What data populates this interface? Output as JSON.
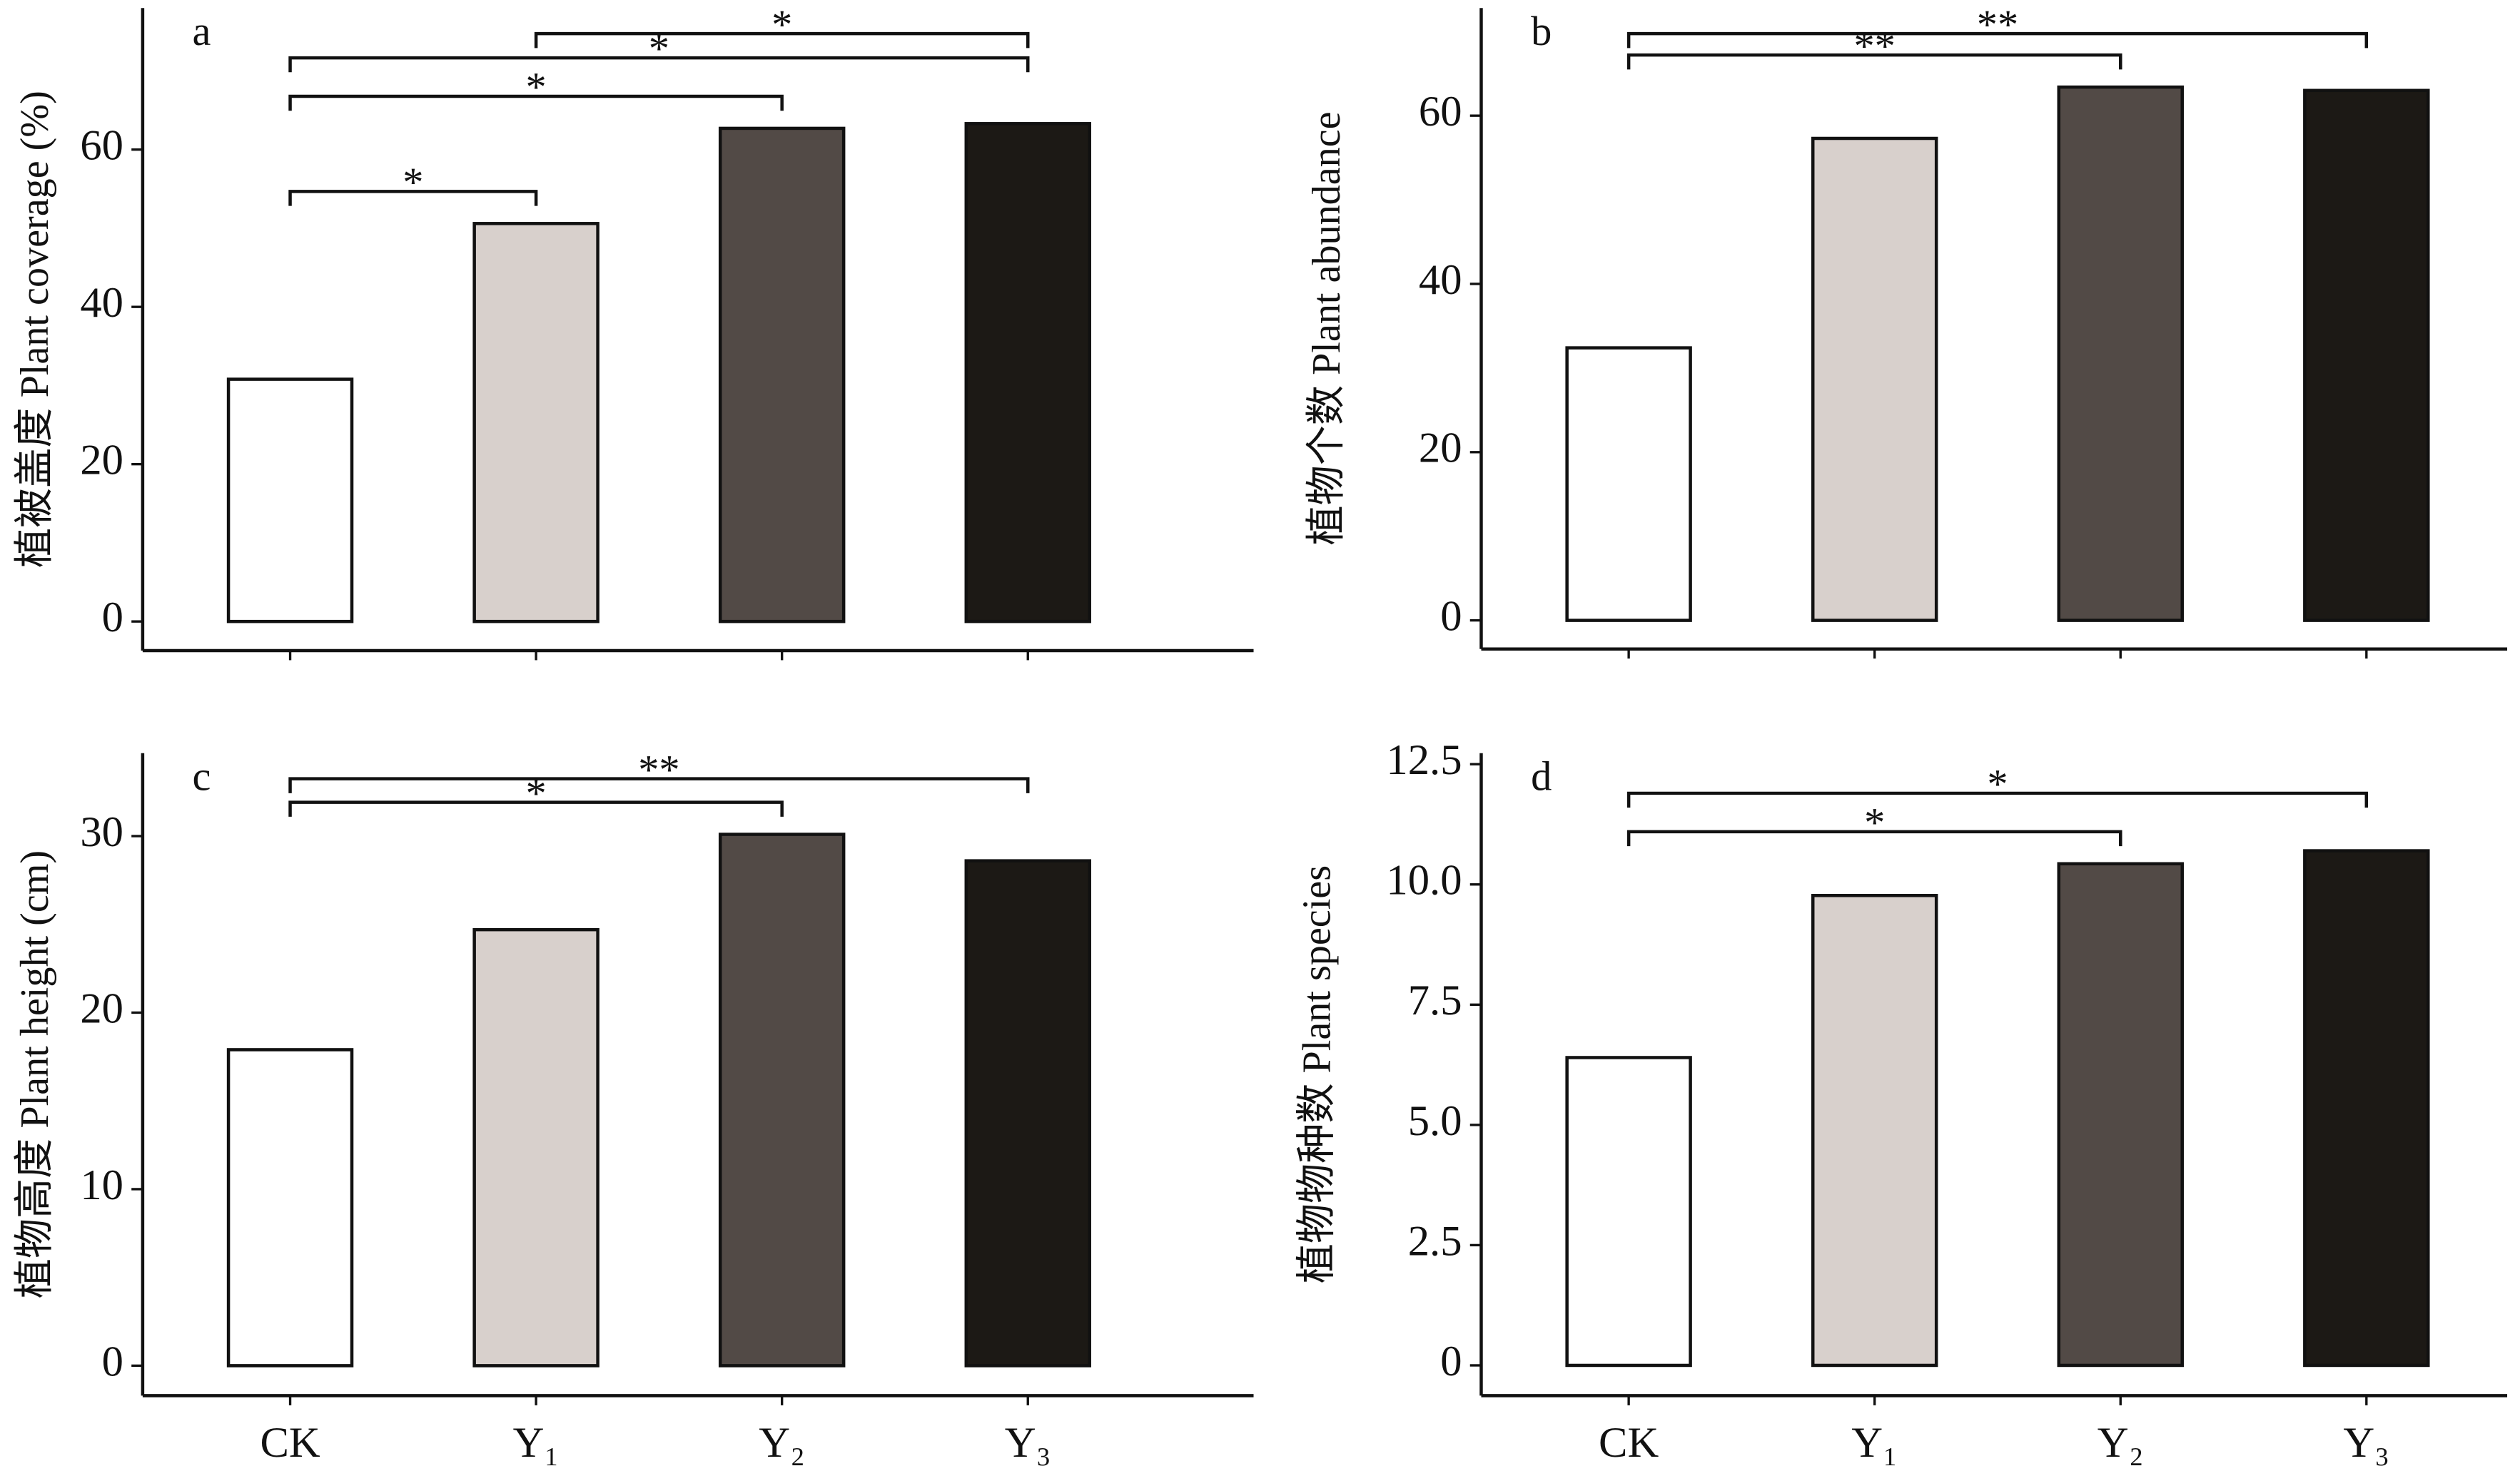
{
  "chart_data": [
    {
      "type": "bar",
      "title": "a",
      "y_label": "植被盖度 Plant coverage (%)",
      "categories": [
        null,
        null,
        null,
        null
      ],
      "values": [
        30.8,
        50.6,
        62.7,
        63.3
      ],
      "colors": [
        "#ffffff",
        "#d8d0cc",
        "#524a46",
        "#1c1915"
      ],
      "ylim": [
        -3.7,
        78
      ],
      "yticks": [
        0,
        20,
        40,
        60
      ],
      "significance": [
        {
          "text": "*",
          "pair": [
            0,
            1
          ]
        },
        {
          "text": "*",
          "pair": [
            0,
            2
          ]
        },
        {
          "text": "*",
          "pair": [
            0,
            3
          ]
        },
        {
          "text": "*",
          "pair": [
            1,
            3
          ]
        }
      ]
    },
    {
      "type": "bar",
      "title": "b",
      "y_label": "植物个数 Plant abundance",
      "categories": [
        null,
        null,
        null,
        null
      ],
      "values": [
        32.4,
        57.3,
        63.4,
        63.0
      ],
      "colors": [
        "#ffffff",
        "#d8d0cc",
        "#524a46",
        "#1c1915"
      ],
      "ylim": [
        -3.4,
        72.8
      ],
      "yticks": [
        0,
        20,
        40,
        60
      ],
      "significance": [
        {
          "text": "**",
          "pair": [
            0,
            2
          ]
        },
        {
          "text": "**",
          "pair": [
            0,
            3
          ]
        }
      ]
    },
    {
      "type": "bar",
      "title": "c",
      "y_label": "植物高度 Plant height (cm)",
      "categories": [
        "CK",
        "Y₁",
        "Y₂",
        "Y₃"
      ],
      "values": [
        17.9,
        24.7,
        30.1,
        28.6
      ],
      "colors": [
        "#ffffff",
        "#d8d0cc",
        "#524a46",
        "#1c1915"
      ],
      "ylim": [
        -1.7,
        34.7
      ],
      "yticks": [
        0,
        10,
        20,
        30
      ],
      "significance": [
        {
          "text": "*",
          "pair": [
            0,
            2
          ]
        },
        {
          "text": "**",
          "pair": [
            0,
            3
          ]
        }
      ]
    },
    {
      "type": "bar",
      "title": "d",
      "y_label": "植物物种数 Plant species",
      "categories": [
        "CK",
        "Y₁",
        "Y₂",
        "Y₃"
      ],
      "values": [
        6.4,
        9.77,
        10.43,
        10.7
      ],
      "colors": [
        "#ffffff",
        "#d8d0cc",
        "#524a46",
        "#1c1915"
      ],
      "ylim": [
        -0.63,
        12.73
      ],
      "yticks": [
        0,
        2.5,
        {
          "value": 5,
          "label": "5.0"
        },
        7.5,
        {
          "value": 10,
          "label": "10.0"
        },
        12.5
      ],
      "significance": [
        {
          "text": "*",
          "pair": [
            0,
            2
          ]
        },
        {
          "text": "*",
          "pair": [
            0,
            3
          ]
        }
      ]
    }
  ]
}
